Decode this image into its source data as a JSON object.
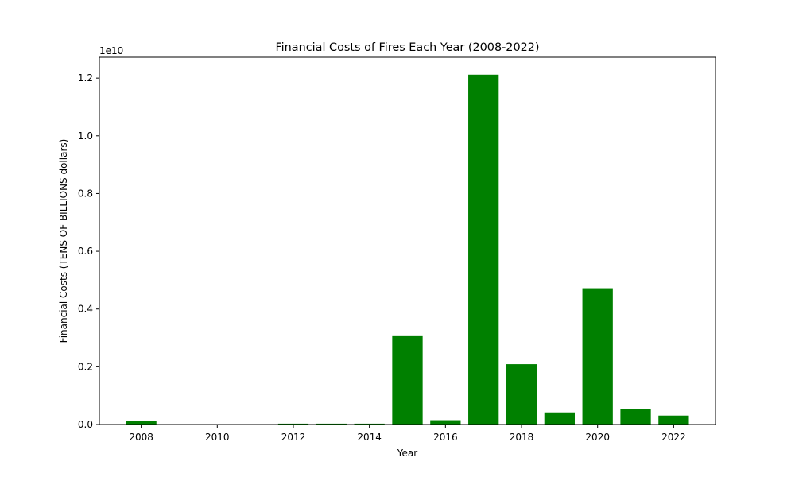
{
  "chart_data": {
    "type": "bar",
    "title": "Financial Costs of Fires Each Year (2008-2022)",
    "xlabel": "Year",
    "ylabel": "Financial Costs (TENS OF BILLIONS dollars)",
    "y_offset_label": "1e10",
    "categories": [
      2008,
      2009,
      2010,
      2011,
      2012,
      2013,
      2014,
      2015,
      2016,
      2017,
      2018,
      2019,
      2020,
      2021,
      2022
    ],
    "values": [
      120000000,
      0,
      0,
      0,
      30000000,
      30000000,
      30000000,
      3060000000,
      150000000,
      12120000000,
      2090000000,
      420000000,
      4720000000,
      530000000,
      310000000
    ],
    "bar_color": "#008000",
    "xlim": [
      2006.9,
      2023.1
    ],
    "ylim": [
      0,
      12720000000
    ],
    "xticks": [
      "2008",
      "2010",
      "2012",
      "2014",
      "2016",
      "2018",
      "2020",
      "2022"
    ],
    "yticks": [
      "0.0",
      "0.2",
      "0.4",
      "0.6",
      "0.8",
      "1.0",
      "1.2"
    ],
    "grid": false
  }
}
